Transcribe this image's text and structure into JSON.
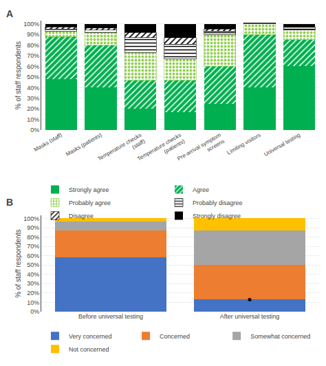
{
  "chart_data": [
    {
      "type": "bar",
      "title": "A",
      "categories": [
        "Masks (staff)",
        "Masks (patients)",
        "Temperature checks\n(staff)",
        "Temperature checks\n(patients)",
        "Pre-arrival symptom\nscreens",
        "Limiting visitors",
        "Universal testing"
      ],
      "series": [
        {
          "name": "Strongly agree",
          "color": "#00b050",
          "values": [
            48,
            40,
            20,
            17,
            25,
            40,
            60
          ]
        },
        {
          "name": "Agree",
          "color": "#00b050",
          "values": [
            40,
            40,
            27,
            30,
            35,
            50,
            25
          ]
        },
        {
          "name": "Probably agree",
          "color": "#92d050",
          "values": [
            5,
            12,
            26,
            20,
            30,
            10,
            9
          ]
        },
        {
          "name": "Probably disagree",
          "color": "#000000",
          "values": [
            2,
            2,
            14,
            14,
            3,
            1,
            3
          ]
        },
        {
          "name": "Disagree",
          "color": "#000000",
          "values": [
            2,
            2,
            5,
            6,
            2,
            0,
            0
          ]
        },
        {
          "name": "Strongly disagree",
          "color": "#000000",
          "values": [
            3,
            4,
            8,
            13,
            5,
            0,
            3
          ]
        }
      ],
      "ylabel": "% of staff respondents",
      "ylim": [
        0,
        103
      ],
      "yticks": [
        {
          "value": 0,
          "label": "0%"
        },
        {
          "value": 10,
          "label": "10%"
        },
        {
          "value": 20,
          "label": "20%"
        },
        {
          "value": 30,
          "label": "30%"
        },
        {
          "value": 40,
          "label": "40%"
        },
        {
          "value": 50,
          "label": "50%"
        },
        {
          "value": 60,
          "label": "60%"
        },
        {
          "value": 70,
          "label": "70%"
        },
        {
          "value": 80,
          "label": "80%"
        },
        {
          "value": 90,
          "label": "90%"
        },
        {
          "value": 100,
          "label": "100%"
        }
      ],
      "stacked": true,
      "grid": true,
      "legend": "bottom"
    },
    {
      "type": "bar",
      "title": "B",
      "categories": [
        "Before universal testing",
        "After universal testing"
      ],
      "series": [
        {
          "name": "Very concerned",
          "color": "#4472c4",
          "values": [
            58,
            13
          ]
        },
        {
          "name": "Concerned",
          "color": "#ed7d31",
          "values": [
            29,
            37
          ]
        },
        {
          "name": "Somewhat concerned",
          "color": "#a5a5a5",
          "values": [
            10,
            37
          ]
        },
        {
          "name": "Not concerned",
          "color": "#ffc000",
          "values": [
            3,
            13
          ]
        }
      ],
      "points": [
        {
          "category": "After universal testing",
          "value": 13,
          "color": "#000000",
          "marker": "dot"
        }
      ],
      "ylabel": "% of staff respondents",
      "ylim": [
        0,
        103
      ],
      "yticks": [
        {
          "value": 0,
          "label": "0%"
        },
        {
          "value": 10,
          "label": "10%"
        },
        {
          "value": 20,
          "label": "20%"
        },
        {
          "value": 30,
          "label": "30%"
        },
        {
          "value": 40,
          "label": "40%"
        },
        {
          "value": 50,
          "label": "50%"
        },
        {
          "value": 60,
          "label": "60%"
        },
        {
          "value": 70,
          "label": "70%"
        },
        {
          "value": 80,
          "label": "80%"
        },
        {
          "value": 90,
          "label": "90%"
        },
        {
          "value": 100,
          "label": "100%"
        }
      ],
      "stacked": true,
      "grid": true,
      "legend": "bottom"
    }
  ]
}
